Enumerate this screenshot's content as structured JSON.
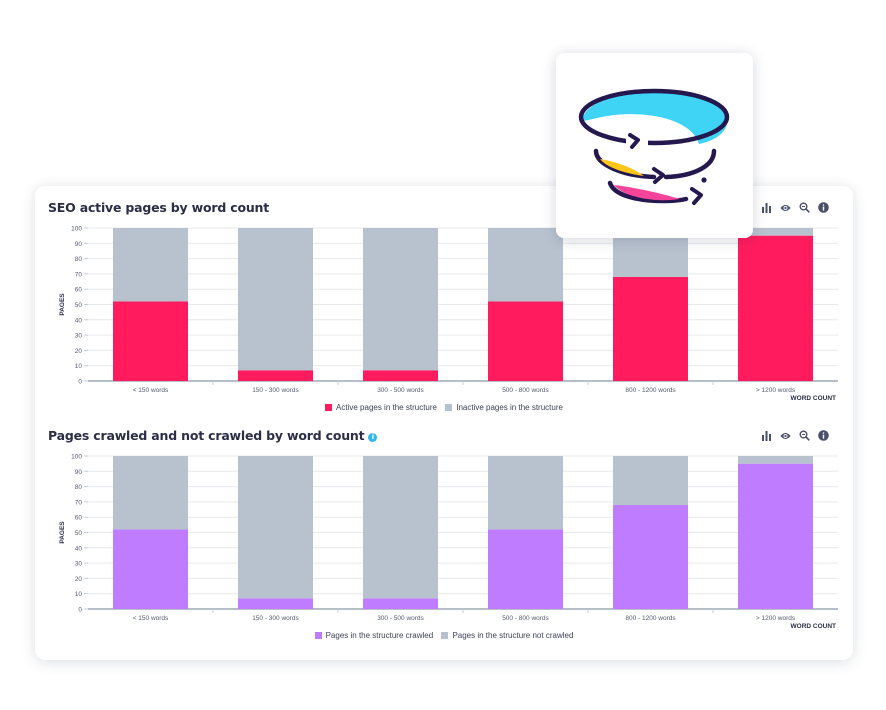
{
  "logo": {
    "name": "tornado-funnel-logo"
  },
  "toolbar_icons": [
    "bar-chart-icon",
    "eye-icon",
    "zoom-icon",
    "info-icon"
  ],
  "charts": [
    {
      "title": "SEO active pages by word count",
      "has_info_badge": false,
      "legend": [
        {
          "label": "Active pages in the structure",
          "color": "#ff1b5e"
        },
        {
          "label": "Inactive pages in the structure",
          "color": "#b8c2cf"
        }
      ]
    },
    {
      "title": "Pages crawled and not crawled by word count",
      "has_info_badge": true,
      "info_badge": "i",
      "legend": [
        {
          "label": "Pages in the structure crawled",
          "color": "#c07cff"
        },
        {
          "label": "Pages in the structure not crawled",
          "color": "#b8c2cf"
        }
      ]
    }
  ],
  "chart_data": [
    {
      "type": "bar",
      "stacked": true,
      "title": "SEO active pages by word count",
      "xlabel": "WORD COUNT",
      "ylabel": "PAGES",
      "ylim": [
        0,
        100
      ],
      "yticks": [
        0,
        10,
        20,
        30,
        40,
        50,
        60,
        70,
        80,
        90,
        100
      ],
      "grid": true,
      "legend_position": "bottom-center",
      "categories": [
        "< 150 words",
        "150 - 300 words",
        "300 - 500 words",
        "500 - 800 words",
        "800 - 1200 words",
        "> 1200 words"
      ],
      "series": [
        {
          "name": "Active pages in the structure",
          "color": "#ff1b5e",
          "values": [
            52,
            7,
            7,
            52,
            68,
            95
          ]
        },
        {
          "name": "Inactive pages in the structure",
          "color": "#b8c2cf",
          "values": [
            48,
            93,
            93,
            48,
            32,
            5
          ]
        }
      ]
    },
    {
      "type": "bar",
      "stacked": true,
      "title": "Pages crawled and not crawled by word count",
      "xlabel": "WORD COUNT",
      "ylabel": "PAGES",
      "ylim": [
        0,
        100
      ],
      "yticks": [
        0,
        10,
        20,
        30,
        40,
        50,
        60,
        70,
        80,
        90,
        100
      ],
      "grid": true,
      "legend_position": "bottom-center",
      "categories": [
        "< 150 words",
        "150 - 300 words",
        "300 - 500 words",
        "500 - 800 words",
        "800 - 1200 words",
        "> 1200 words"
      ],
      "series": [
        {
          "name": "Pages in the structure crawled",
          "color": "#c07cff",
          "values": [
            52,
            7,
            7,
            52,
            68,
            95
          ]
        },
        {
          "name": "Pages in the structure not crawled",
          "color": "#b8c2cf",
          "values": [
            48,
            93,
            93,
            48,
            32,
            5
          ]
        }
      ]
    }
  ]
}
